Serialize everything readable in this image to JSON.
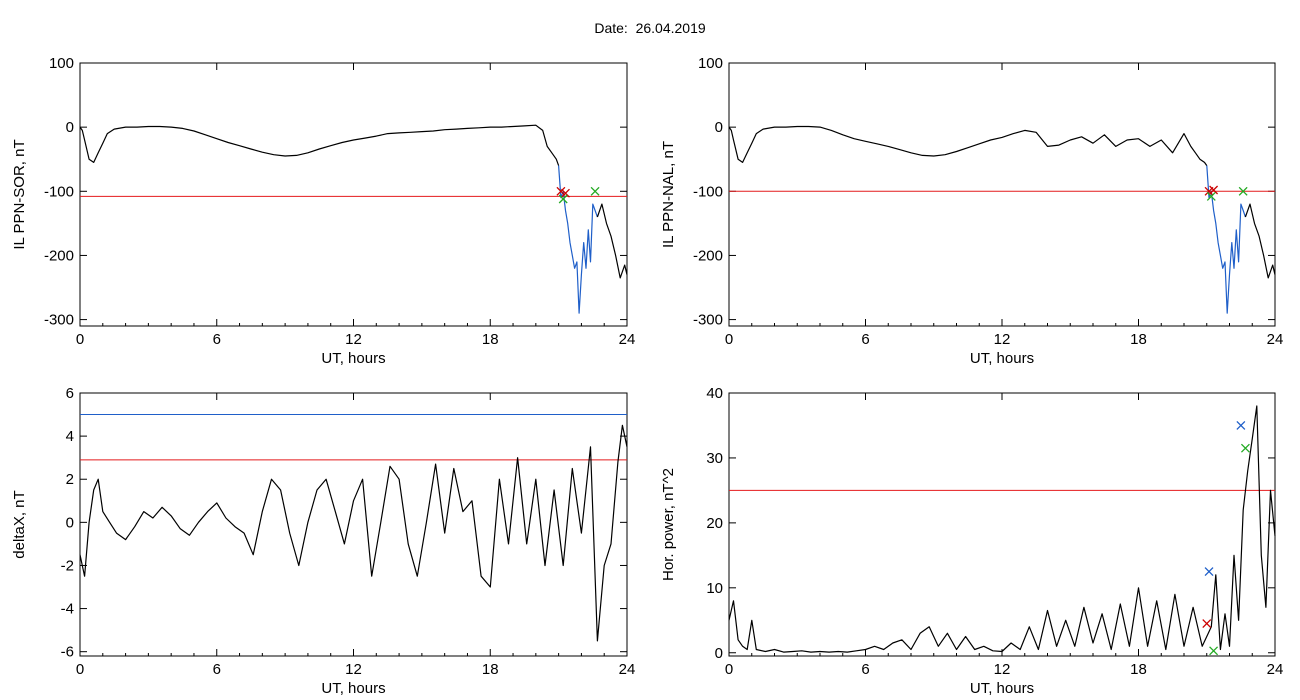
{
  "date_title": "Date:  26.04.2019",
  "colors": {
    "data": "#000000",
    "threshold": "#e41a1c",
    "blue": "#1f5fc9",
    "green": "#22aa22",
    "marker_red": "#cc0000"
  },
  "chart_data": [
    {
      "type": "line",
      "id": "ppn-sor",
      "xlabel": "UT, hours",
      "ylabel": "IL PPN-SOR, nT",
      "xlim": [
        0,
        24
      ],
      "ylim": [
        -310,
        100
      ],
      "xticks": [
        0,
        6,
        12,
        18,
        24
      ],
      "yticks": [
        -300,
        -200,
        -100,
        0,
        100
      ],
      "grid": false,
      "threshold": -108,
      "threshold_color": "#e41a1c",
      "series": [
        {
          "x": [
            0,
            0.1,
            0.2,
            0.4,
            0.6,
            0.8,
            1.0,
            1.2,
            1.5,
            2,
            2.5,
            3,
            3.5,
            4,
            4.5,
            5,
            5.5,
            6,
            6.5,
            7,
            7.5,
            8,
            8.5,
            9,
            9.5,
            10,
            10.5,
            11,
            11.5,
            12,
            12.5,
            13,
            13.5,
            14,
            14.5,
            15,
            15.5,
            16,
            16.5,
            17,
            17.5,
            18,
            18.5,
            19,
            19.5,
            20,
            20.3,
            20.5,
            20.7,
            20.9,
            21.0
          ],
          "y": [
            0,
            -5,
            -20,
            -50,
            -55,
            -40,
            -25,
            -10,
            -3,
            0,
            0,
            1,
            1,
            0,
            -2,
            -6,
            -12,
            -18,
            -24,
            -29,
            -34,
            -39,
            -43,
            -45,
            -44,
            -40,
            -34,
            -29,
            -24,
            -20,
            -17,
            -14,
            -10,
            -9,
            -8,
            -7,
            -6,
            -4,
            -3,
            -2,
            -1,
            0,
            0,
            1,
            2,
            3,
            -5,
            -30,
            -40,
            -50,
            -60
          ],
          "color": "#000000"
        },
        {
          "x": [
            21.0,
            21.1,
            21.2,
            21.3,
            21.4,
            21.5,
            21.6,
            21.7,
            21.8,
            21.9,
            22.0,
            22.1,
            22.2,
            22.3,
            22.4,
            22.5,
            22.6,
            22.7
          ],
          "y": [
            -60,
            -110,
            -100,
            -130,
            -150,
            -180,
            -200,
            -220,
            -210,
            -290,
            -230,
            -180,
            -220,
            -160,
            -210,
            -120,
            -130,
            -140
          ],
          "color": "#1f5fc9"
        },
        {
          "x": [
            22.7,
            22.9,
            23.1,
            23.3,
            23.5,
            23.7,
            23.9,
            24.0
          ],
          "y": [
            -140,
            -120,
            -150,
            -170,
            -200,
            -235,
            -215,
            -230
          ],
          "color": "#000000"
        }
      ],
      "markers": [
        {
          "x": 21.1,
          "y": -100,
          "color": "#cc0000",
          "shape": "x"
        },
        {
          "x": 21.3,
          "y": -103,
          "color": "#cc0000",
          "shape": "x"
        },
        {
          "x": 21.2,
          "y": -112,
          "color": "#22aa22",
          "shape": "x"
        },
        {
          "x": 22.6,
          "y": -100,
          "color": "#22aa22",
          "shape": "x"
        }
      ]
    },
    {
      "type": "line",
      "id": "ppn-nal",
      "xlabel": "UT, hours",
      "ylabel": "IL PPN-NAL, nT",
      "xlim": [
        0,
        24
      ],
      "ylim": [
        -310,
        100
      ],
      "xticks": [
        0,
        6,
        12,
        18,
        24
      ],
      "yticks": [
        -300,
        -200,
        -100,
        0,
        100
      ],
      "grid": false,
      "threshold": -100,
      "threshold_color": "#e41a1c",
      "series": [
        {
          "x": [
            0,
            0.1,
            0.2,
            0.4,
            0.6,
            0.8,
            1.0,
            1.2,
            1.5,
            2,
            2.5,
            3,
            3.5,
            4,
            4.5,
            5,
            5.5,
            6,
            6.5,
            7,
            7.5,
            8,
            8.5,
            9,
            9.5,
            10,
            10.5,
            11,
            11.5,
            12,
            12.5,
            13,
            13.5,
            14,
            14.5,
            15,
            15.5,
            16,
            16.5,
            17,
            17.5,
            18,
            18.5,
            19,
            19.5,
            20,
            20.3,
            20.5,
            20.7,
            20.9,
            21.0
          ],
          "y": [
            0,
            -5,
            -20,
            -50,
            -55,
            -40,
            -25,
            -10,
            -3,
            0,
            0,
            1,
            1,
            0,
            -5,
            -12,
            -18,
            -22,
            -26,
            -30,
            -35,
            -40,
            -44,
            -45,
            -43,
            -38,
            -32,
            -26,
            -20,
            -16,
            -10,
            -5,
            -8,
            -30,
            -28,
            -20,
            -15,
            -25,
            -12,
            -30,
            -20,
            -18,
            -30,
            -20,
            -40,
            -10,
            -30,
            -40,
            -50,
            -55,
            -60
          ],
          "color": "#000000"
        },
        {
          "x": [
            21.0,
            21.1,
            21.2,
            21.3,
            21.4,
            21.5,
            21.6,
            21.7,
            21.8,
            21.9,
            22.0,
            22.1,
            22.2,
            22.3,
            22.4,
            22.5,
            22.6,
            22.7
          ],
          "y": [
            -60,
            -110,
            -100,
            -130,
            -150,
            -180,
            -200,
            -220,
            -210,
            -290,
            -230,
            -180,
            -220,
            -160,
            -210,
            -120,
            -130,
            -140
          ],
          "color": "#1f5fc9"
        },
        {
          "x": [
            22.7,
            22.9,
            23.1,
            23.3,
            23.5,
            23.7,
            23.9,
            24.0
          ],
          "y": [
            -140,
            -120,
            -150,
            -170,
            -200,
            -235,
            -215,
            -230
          ],
          "color": "#000000"
        }
      ],
      "markers": [
        {
          "x": 21.1,
          "y": -100,
          "color": "#cc0000",
          "shape": "x"
        },
        {
          "x": 21.3,
          "y": -98,
          "color": "#cc0000",
          "shape": "x"
        },
        {
          "x": 21.2,
          "y": -108,
          "color": "#22aa22",
          "shape": "x"
        },
        {
          "x": 22.6,
          "y": -100,
          "color": "#22aa22",
          "shape": "x"
        }
      ]
    },
    {
      "type": "line",
      "id": "deltax",
      "xlabel": "UT, hours",
      "ylabel": "deltaX, nT",
      "xlim": [
        0,
        24
      ],
      "ylim": [
        -6.2,
        6
      ],
      "xticks": [
        0,
        6,
        12,
        18,
        24
      ],
      "yticks": [
        -6,
        -4,
        -2,
        0,
        2,
        4,
        6
      ],
      "grid": false,
      "thresholds": [
        {
          "y": 5.0,
          "color": "#1f5fc9"
        },
        {
          "y": 2.9,
          "color": "#e41a1c"
        }
      ],
      "series": [
        {
          "x": [
            0,
            0.2,
            0.4,
            0.6,
            0.8,
            1.0,
            1.3,
            1.6,
            2.0,
            2.4,
            2.8,
            3.2,
            3.6,
            4.0,
            4.4,
            4.8,
            5.2,
            5.6,
            6.0,
            6.4,
            6.8,
            7.2,
            7.6,
            8.0,
            8.4,
            8.8,
            9.2,
            9.6,
            10.0,
            10.4,
            10.8,
            11.2,
            11.6,
            12.0,
            12.4,
            12.8,
            13.2,
            13.6,
            14.0,
            14.4,
            14.8,
            15.2,
            15.6,
            16.0,
            16.4,
            16.8,
            17.2,
            17.6,
            18.0,
            18.4,
            18.8,
            19.2,
            19.6,
            20.0,
            20.4,
            20.8,
            21.2,
            21.6,
            22.0,
            22.4,
            22.7,
            23.0,
            23.3,
            23.6,
            23.8,
            24.0
          ],
          "y": [
            -1.5,
            -2.5,
            0,
            1.5,
            2,
            0.5,
            0,
            -0.5,
            -0.8,
            -0.2,
            0.5,
            0.2,
            0.7,
            0.3,
            -0.3,
            -0.6,
            0,
            0.5,
            0.9,
            0.2,
            -0.2,
            -0.5,
            -1.5,
            0.5,
            2,
            1.5,
            -0.5,
            -2,
            0,
            1.5,
            2,
            0.5,
            -1,
            1,
            2,
            -2.5,
            0,
            2.6,
            2,
            -1,
            -2.5,
            0,
            2.7,
            -0.5,
            2.5,
            0.5,
            1,
            -2.5,
            -3,
            2,
            -1,
            3,
            -1,
            2,
            -2,
            1.5,
            -2,
            2.5,
            -0.5,
            3.5,
            -5.5,
            -2,
            -1,
            2.8,
            4.5,
            3.5
          ],
          "color": "#000000"
        }
      ]
    },
    {
      "type": "line",
      "id": "hor-power",
      "xlabel": "UT, hours",
      "ylabel": "Hor. power, nT^2",
      "xlim": [
        0,
        24
      ],
      "ylim": [
        -0.5,
        40
      ],
      "xticks": [
        0,
        6,
        12,
        18,
        24
      ],
      "yticks": [
        0,
        10,
        20,
        30,
        40
      ],
      "grid": false,
      "threshold": 25,
      "threshold_color": "#e41a1c",
      "series": [
        {
          "x": [
            0,
            0.2,
            0.4,
            0.6,
            0.8,
            1.0,
            1.2,
            1.6,
            2.0,
            2.4,
            2.8,
            3.2,
            3.6,
            4.0,
            4.4,
            4.8,
            5.2,
            5.6,
            6.0,
            6.4,
            6.8,
            7.2,
            7.6,
            8.0,
            8.4,
            8.8,
            9.2,
            9.6,
            10.0,
            10.4,
            10.8,
            11.2,
            11.6,
            12.0,
            12.4,
            12.8,
            13.2,
            13.6,
            14.0,
            14.4,
            14.8,
            15.2,
            15.6,
            16.0,
            16.4,
            16.8,
            17.2,
            17.6,
            18.0,
            18.4,
            18.8,
            19.2,
            19.6,
            20.0,
            20.4,
            20.8,
            21.2,
            21.4,
            21.6,
            21.8,
            22.0,
            22.2,
            22.4,
            22.6,
            22.8,
            23.0,
            23.2,
            23.4,
            23.6,
            23.8,
            24.0
          ],
          "y": [
            5,
            8,
            2,
            1,
            0.5,
            5,
            0.5,
            0.2,
            0.5,
            0.1,
            0.2,
            0.3,
            0.1,
            0.2,
            0.1,
            0.2,
            0.1,
            0.3,
            0.5,
            1,
            0.5,
            1.5,
            2,
            0.5,
            3,
            4,
            1,
            3,
            0.5,
            2.5,
            0.5,
            1,
            0.3,
            0.2,
            1.5,
            0.5,
            4,
            0.5,
            6.5,
            1,
            5,
            1,
            7,
            1.5,
            6,
            0.5,
            7.5,
            1,
            10,
            1,
            8,
            0.5,
            9,
            1,
            7,
            1,
            4,
            12,
            0.5,
            6,
            1,
            15,
            5,
            22,
            28,
            33,
            38,
            15,
            7,
            25,
            18
          ],
          "color": "#000000"
        }
      ],
      "markers": [
        {
          "x": 21.1,
          "y": 12.5,
          "color": "#1f5fc9",
          "shape": "x"
        },
        {
          "x": 21.0,
          "y": 4.5,
          "color": "#cc0000",
          "shape": "x"
        },
        {
          "x": 21.3,
          "y": 0.3,
          "color": "#22aa22",
          "shape": "x"
        },
        {
          "x": 22.5,
          "y": 35,
          "color": "#1f5fc9",
          "shape": "x"
        },
        {
          "x": 22.7,
          "y": 31.5,
          "color": "#22aa22",
          "shape": "x"
        }
      ]
    }
  ]
}
